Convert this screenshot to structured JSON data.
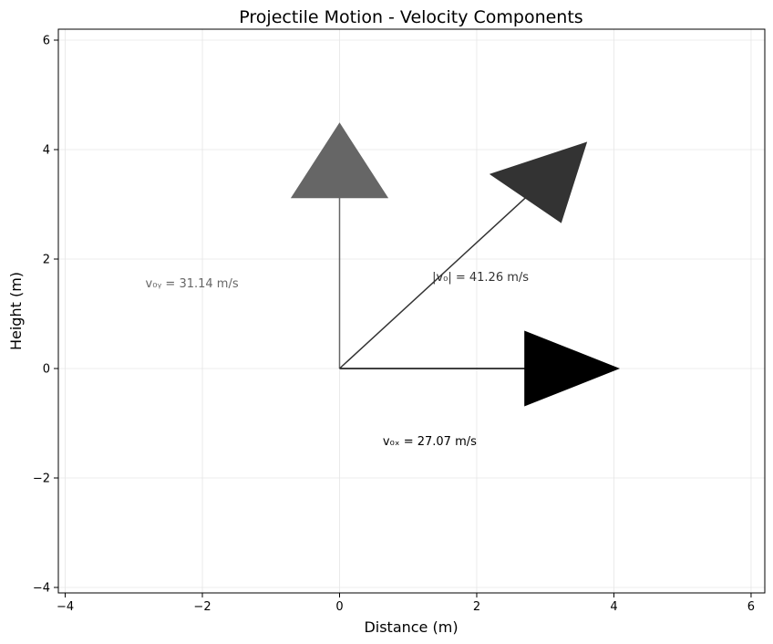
{
  "chart_data": {
    "type": "vector",
    "title": "Projectile Motion - Velocity Components",
    "xlabel": "Distance (m)",
    "ylabel": "Height (m)",
    "xlim": [
      -4.1,
      6.2
    ],
    "ylim": [
      -4.1,
      6.2
    ],
    "xticks": [
      -4,
      -2,
      0,
      2,
      4,
      6
    ],
    "yticks": [
      -4,
      -2,
      0,
      2,
      4,
      6
    ],
    "xtick_labels": [
      "−4",
      "−2",
      "0",
      "2",
      "4",
      "6"
    ],
    "ytick_labels": [
      "−4",
      "−2",
      "0",
      "2",
      "4",
      "6"
    ],
    "grid": true,
    "vectors": [
      {
        "id": "vx",
        "origin": [
          0,
          0
        ],
        "tail_end": [
          2.7,
          0
        ],
        "head_base": [
          [
            2.7,
            0.68
          ],
          [
            2.7,
            -0.68
          ]
        ],
        "tip": [
          4.07,
          0
        ],
        "color": "#000000",
        "label": "v₀ₓ = 27.07 m/s",
        "label_pos": [
          0.63,
          -1.33
        ]
      },
      {
        "id": "vy",
        "origin": [
          0,
          0
        ],
        "tail_end": [
          0,
          3.12
        ],
        "head_base": [
          [
            -0.7,
            3.12
          ],
          [
            0.7,
            3.12
          ]
        ],
        "tip": [
          0,
          4.48
        ],
        "color": "#666666",
        "label": "v₀ᵧ = 31.14 m/s",
        "label_pos": [
          -2.83,
          1.55
        ]
      },
      {
        "id": "v",
        "origin": [
          0,
          0
        ],
        "tail_end": [
          2.72,
          3.13
        ],
        "head_base": [
          [
            2.2,
            3.55
          ],
          [
            3.23,
            2.67
          ]
        ],
        "tip": [
          3.6,
          4.13
        ],
        "color": "#333333",
        "label": "|v₀| = 41.26 m/s",
        "label_pos": [
          1.35,
          1.67
        ]
      }
    ]
  }
}
